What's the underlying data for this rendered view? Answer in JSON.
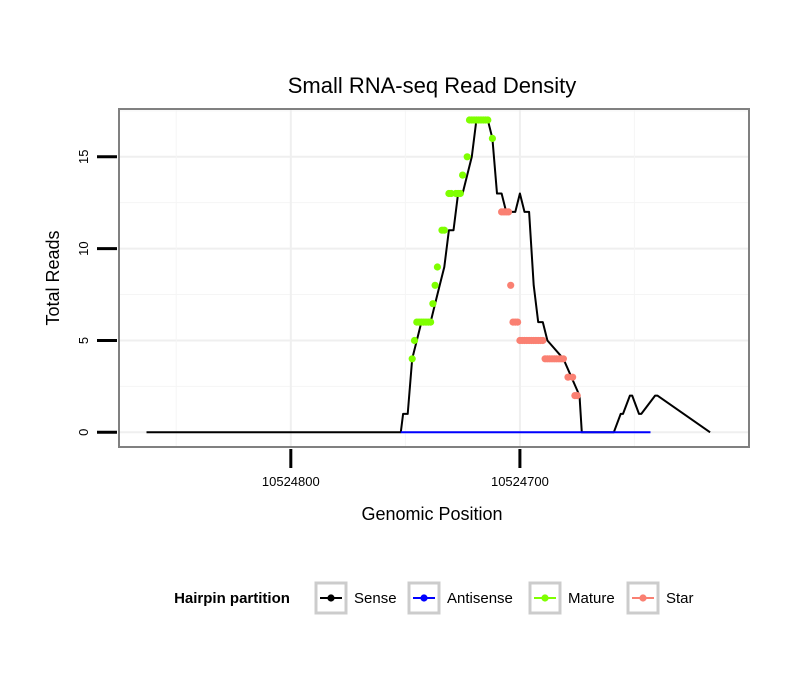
{
  "chart_data": {
    "type": "line",
    "title": "Small RNA-seq Read Density",
    "xlabel": "Genomic Position",
    "ylabel": "Total Reads",
    "xlim": [
      10524875,
      10524600
    ],
    "ylim": [
      -0.8,
      17.6
    ],
    "x_reversed": true,
    "grid": true,
    "xticks": [
      10524800,
      10524700
    ],
    "xtick_labels": [
      "10524800",
      "10524700"
    ],
    "yticks": [
      0,
      5,
      10,
      15
    ],
    "ytick_labels": [
      "0",
      "5",
      "10",
      "15"
    ],
    "legend": {
      "title": "Hairpin partition",
      "placement": "bottom",
      "entries": [
        {
          "name": "Sense",
          "color": "#000000"
        },
        {
          "name": "Antisense",
          "color": "#0000ff"
        },
        {
          "name": "Mature",
          "color": "#7fff00"
        },
        {
          "name": "Star",
          "color": "#fa8072"
        }
      ]
    },
    "series": [
      {
        "name": "Sense",
        "color": "#000000",
        "kind": "line",
        "x": [
          10524863,
          10524752,
          10524751,
          10524749,
          10524747,
          10524745,
          10524743,
          10524741,
          10524739,
          10524737,
          10524735,
          10524733,
          10524731,
          10524729,
          10524727,
          10524725,
          10524723,
          10524721,
          10524719,
          10524717,
          10524715,
          10524714,
          10524712,
          10524710,
          10524708,
          10524706,
          10524704,
          10524702,
          10524700,
          10524698,
          10524696,
          10524694,
          10524692,
          10524690,
          10524688,
          10524681,
          10524674,
          10524673,
          10524659,
          10524656,
          10524655,
          10524652,
          10524651,
          10524648,
          10524647,
          10524641,
          10524640,
          10524617
        ],
        "y": [
          0,
          0,
          1,
          1,
          4,
          5,
          6,
          6,
          6,
          7,
          8,
          9,
          11,
          11,
          13,
          13,
          14,
          15,
          17,
          17,
          17,
          17,
          16,
          13,
          13,
          12,
          12,
          12,
          13,
          12,
          12,
          8,
          6,
          6,
          5,
          4,
          2,
          0,
          0,
          1,
          1,
          2,
          2,
          1,
          1,
          2,
          2,
          0
        ]
      },
      {
        "name": "Antisense",
        "color": "#0000ff",
        "kind": "line",
        "x": [
          10524752,
          10524643
        ],
        "y": [
          0,
          0
        ]
      },
      {
        "name": "Mature",
        "color": "#7fff00",
        "kind": "points",
        "x": [
          10524747,
          10524746,
          10524745,
          10524744,
          10524743,
          10524742,
          10524741,
          10524740,
          10524739,
          10524738,
          10524737,
          10524736,
          10524734,
          10524733,
          10524731,
          10524730,
          10524728,
          10524727,
          10524726,
          10524725,
          10524723,
          10524722,
          10524721,
          10524720,
          10524719,
          10524718,
          10524717,
          10524716,
          10524715,
          10524714,
          10524712
        ],
        "y": [
          4,
          5,
          6,
          6,
          6,
          6,
          6,
          6,
          6,
          7,
          8,
          9,
          11,
          11,
          13,
          13,
          13,
          13,
          13,
          14,
          15,
          17,
          17,
          17,
          17,
          17,
          17,
          17,
          17,
          17,
          16
        ]
      },
      {
        "name": "Star",
        "color": "#fa8072",
        "kind": "points",
        "x": [
          10524708,
          10524707,
          10524706,
          10524705,
          10524704,
          10524703,
          10524702,
          10524701,
          10524700,
          10524699,
          10524698,
          10524697,
          10524696,
          10524695,
          10524694,
          10524693,
          10524692,
          10524691,
          10524690,
          10524689,
          10524688,
          10524687,
          10524686,
          10524685,
          10524684,
          10524683,
          10524682,
          10524681,
          10524679,
          10524677,
          10524676,
          10524675
        ],
        "y": [
          12,
          12,
          12,
          12,
          8,
          6,
          6,
          6,
          5,
          5,
          5,
          5,
          5,
          5,
          5,
          5,
          5,
          5,
          5,
          4,
          4,
          4,
          4,
          4,
          4,
          4,
          4,
          4,
          3,
          3,
          2,
          2
        ]
      }
    ]
  }
}
